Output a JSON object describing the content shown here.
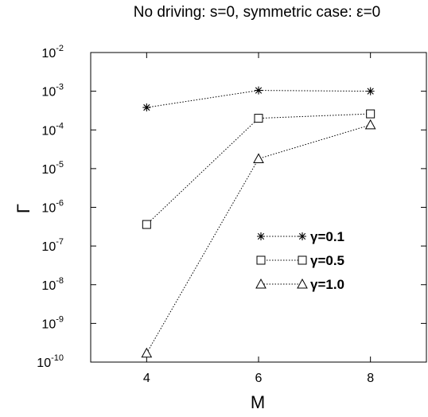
{
  "chart_data": {
    "type": "line",
    "title": "No driving: s=0, symmetric case: ε=0",
    "xlabel": "M",
    "ylabel": "Γ",
    "xlim": [
      3,
      9
    ],
    "ylim": [
      1e-10,
      0.01
    ],
    "yscale": "log",
    "x_ticks": [
      4,
      6,
      8
    ],
    "x_tick_labels": [
      "4",
      "6",
      "8"
    ],
    "y_ticks": [
      1e-10,
      1e-09,
      1e-08,
      1e-07,
      1e-06,
      1e-05,
      0.0001,
      0.001,
      0.01
    ],
    "y_tick_labels": [
      {
        "base": "10",
        "exp": "-10"
      },
      {
        "base": "10",
        "exp": "-9"
      },
      {
        "base": "10",
        "exp": "-8"
      },
      {
        "base": "10",
        "exp": "-7"
      },
      {
        "base": "10",
        "exp": "-6"
      },
      {
        "base": "10",
        "exp": "-5"
      },
      {
        "base": "10",
        "exp": "-4"
      },
      {
        "base": "10",
        "exp": "-3"
      },
      {
        "base": "10",
        "exp": "-2"
      }
    ],
    "grid": false,
    "legend_position": "center-right",
    "line_color": "#000000",
    "line_style": "dotted",
    "series": [
      {
        "name": "γ=0.1",
        "marker": "star",
        "x": [
          4,
          6,
          8
        ],
        "values": [
          0.00038,
          0.00105,
          0.001
        ]
      },
      {
        "name": "γ=0.5",
        "marker": "square",
        "x": [
          4,
          6,
          8
        ],
        "values": [
          3.6e-07,
          0.0002,
          0.00026
        ]
      },
      {
        "name": "γ=1.0",
        "marker": "triangle",
        "x": [
          4,
          6,
          8
        ],
        "values": [
          1.7e-10,
          1.8e-05,
          0.000135
        ]
      }
    ]
  }
}
